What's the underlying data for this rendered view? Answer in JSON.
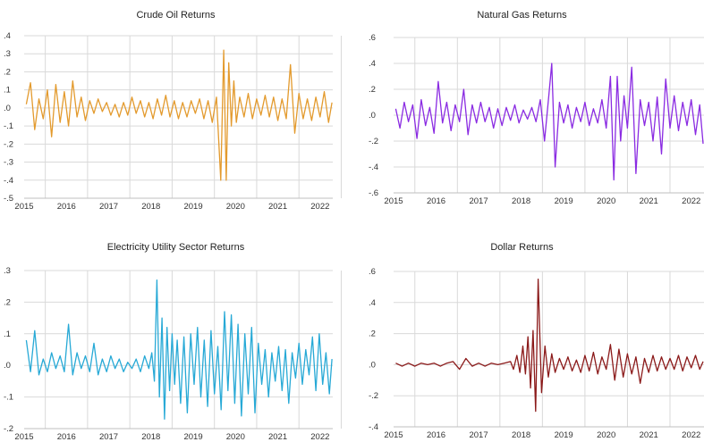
{
  "chart_data": [
    {
      "type": "line",
      "title": "Crude Oil Returns",
      "color": "#e39a2d",
      "x_ticks": [
        "2015",
        "2016",
        "2017",
        "2018",
        "2019",
        "2020",
        "2021",
        "2022"
      ],
      "y_ticks": [
        ".4",
        ".3",
        ".2",
        ".1",
        ".0",
        "-.1",
        "-.2",
        "-.3",
        "-.4",
        "-.5"
      ],
      "ylim": [
        -0.5,
        0.4
      ],
      "xlim": [
        2015.0,
        2022.3
      ],
      "grid": true,
      "series": [
        {
          "x": [
            2015.05,
            2015.15,
            2015.25,
            2015.35,
            2015.45,
            2015.55,
            2015.65,
            2015.75,
            2015.85,
            2015.95,
            2016.05,
            2016.15,
            2016.25,
            2016.35,
            2016.45,
            2016.55,
            2016.65,
            2016.75,
            2016.85,
            2016.95,
            2017.05,
            2017.15,
            2017.25,
            2017.35,
            2017.45,
            2017.55,
            2017.65,
            2017.75,
            2017.85,
            2017.95,
            2018.05,
            2018.15,
            2018.25,
            2018.35,
            2018.45,
            2018.55,
            2018.65,
            2018.75,
            2018.85,
            2018.95,
            2019.05,
            2019.15,
            2019.25,
            2019.35,
            2019.45,
            2019.55,
            2019.65,
            2019.72,
            2019.78,
            2019.84,
            2019.9,
            2019.96,
            2020.02,
            2020.1,
            2020.2,
            2020.3,
            2020.4,
            2020.5,
            2020.6,
            2020.7,
            2020.8,
            2020.9,
            2021.0,
            2021.1,
            2021.2,
            2021.3,
            2021.4,
            2021.5,
            2021.6,
            2021.7,
            2021.8,
            2021.9,
            2022.0,
            2022.1,
            2022.2,
            2022.28
          ],
          "values": [
            0.02,
            0.14,
            -0.12,
            0.05,
            -0.06,
            0.1,
            -0.16,
            0.13,
            -0.08,
            0.09,
            -0.1,
            0.15,
            -0.05,
            0.06,
            -0.07,
            0.04,
            -0.03,
            0.05,
            -0.02,
            0.03,
            -0.04,
            0.02,
            -0.05,
            0.03,
            -0.04,
            0.06,
            -0.03,
            0.04,
            -0.05,
            0.03,
            -0.06,
            0.05,
            -0.04,
            0.07,
            -0.05,
            0.04,
            -0.06,
            0.03,
            -0.05,
            0.04,
            -0.03,
            0.05,
            -0.06,
            0.04,
            -0.08,
            0.06,
            -0.4,
            0.32,
            -0.4,
            0.25,
            -0.1,
            0.15,
            -0.08,
            0.06,
            -0.05,
            0.08,
            -0.06,
            0.05,
            -0.04,
            0.07,
            -0.05,
            0.06,
            -0.07,
            0.05,
            -0.06,
            0.24,
            -0.14,
            0.08,
            -0.06,
            0.05,
            -0.07,
            0.06,
            -0.05,
            0.09,
            -0.08,
            0.03
          ]
        }
      ]
    },
    {
      "type": "line",
      "title": "Natural Gas Returns",
      "color": "#8a2be2",
      "x_ticks": [
        "2015",
        "2016",
        "2017",
        "2018",
        "2019",
        "2020",
        "2021",
        "2022"
      ],
      "y_ticks": [
        ".6",
        ".4",
        ".2",
        ".0",
        "-.2",
        "-.4",
        "-.6"
      ],
      "ylim": [
        -0.6,
        0.6
      ],
      "xlim": [
        2015.0,
        2022.3
      ],
      "grid": true,
      "series": [
        {
          "x": [
            2015.05,
            2015.15,
            2015.25,
            2015.35,
            2015.45,
            2015.55,
            2015.65,
            2015.75,
            2015.85,
            2015.95,
            2016.05,
            2016.15,
            2016.25,
            2016.35,
            2016.45,
            2016.55,
            2016.65,
            2016.75,
            2016.85,
            2016.95,
            2017.05,
            2017.15,
            2017.25,
            2017.35,
            2017.45,
            2017.55,
            2017.65,
            2017.75,
            2017.85,
            2017.95,
            2018.05,
            2018.15,
            2018.25,
            2018.35,
            2018.45,
            2018.55,
            2018.65,
            2018.72,
            2018.8,
            2018.9,
            2019.0,
            2019.1,
            2019.2,
            2019.3,
            2019.4,
            2019.5,
            2019.6,
            2019.7,
            2019.8,
            2019.9,
            2020.0,
            2020.1,
            2020.18,
            2020.26,
            2020.34,
            2020.42,
            2020.5,
            2020.6,
            2020.7,
            2020.8,
            2020.9,
            2021.0,
            2021.1,
            2021.2,
            2021.3,
            2021.4,
            2021.5,
            2021.6,
            2021.7,
            2021.8,
            2021.9,
            2022.0,
            2022.1,
            2022.2,
            2022.28
          ],
          "values": [
            0.05,
            -0.1,
            0.1,
            -0.05,
            0.08,
            -0.18,
            0.12,
            -0.08,
            0.06,
            -0.14,
            0.26,
            -0.06,
            0.1,
            -0.12,
            0.08,
            -0.05,
            0.2,
            -0.15,
            0.08,
            -0.06,
            0.1,
            -0.05,
            0.06,
            -0.1,
            0.05,
            -0.08,
            0.06,
            -0.04,
            0.08,
            -0.06,
            0.04,
            -0.03,
            0.06,
            -0.05,
            0.12,
            -0.2,
            0.15,
            0.4,
            -0.4,
            0.1,
            -0.06,
            0.08,
            -0.1,
            0.06,
            -0.05,
            0.1,
            -0.08,
            0.05,
            -0.06,
            0.12,
            -0.1,
            0.3,
            -0.5,
            0.3,
            -0.2,
            0.15,
            -0.1,
            0.37,
            -0.45,
            0.12,
            -0.08,
            0.1,
            -0.2,
            0.14,
            -0.3,
            0.28,
            -0.1,
            0.15,
            -0.12,
            0.1,
            -0.08,
            0.12,
            -0.15,
            0.08,
            -0.22
          ]
        }
      ]
    },
    {
      "type": "line",
      "title": "Electricity Utility Sector Returns",
      "color": "#27a9d6",
      "x_ticks": [
        "2015",
        "2016",
        "2017",
        "2018",
        "2019",
        "2020",
        "2021",
        "2022"
      ],
      "y_ticks": [
        ".3",
        ".2",
        ".1",
        ".0",
        "-.1",
        "-.2"
      ],
      "ylim": [
        -0.2,
        0.3
      ],
      "xlim": [
        2015.0,
        2022.3
      ],
      "grid": true,
      "series": [
        {
          "x": [
            2015.05,
            2015.15,
            2015.25,
            2015.35,
            2015.45,
            2015.55,
            2015.65,
            2015.75,
            2015.85,
            2015.95,
            2016.05,
            2016.15,
            2016.25,
            2016.35,
            2016.45,
            2016.55,
            2016.65,
            2016.75,
            2016.85,
            2016.95,
            2017.05,
            2017.15,
            2017.25,
            2017.35,
            2017.45,
            2017.55,
            2017.65,
            2017.75,
            2017.85,
            2017.95,
            2018.02,
            2018.08,
            2018.14,
            2018.2,
            2018.26,
            2018.32,
            2018.38,
            2018.44,
            2018.5,
            2018.56,
            2018.62,
            2018.7,
            2018.78,
            2018.86,
            2018.94,
            2019.02,
            2019.1,
            2019.18,
            2019.26,
            2019.34,
            2019.42,
            2019.5,
            2019.58,
            2019.66,
            2019.74,
            2019.82,
            2019.9,
            2019.98,
            2020.06,
            2020.14,
            2020.22,
            2020.3,
            2020.38,
            2020.46,
            2020.54,
            2020.62,
            2020.7,
            2020.78,
            2020.86,
            2020.94,
            2021.02,
            2021.1,
            2021.18,
            2021.26,
            2021.34,
            2021.42,
            2021.5,
            2021.58,
            2021.66,
            2021.74,
            2021.82,
            2021.9,
            2021.98,
            2022.06,
            2022.14,
            2022.22,
            2022.28
          ],
          "values": [
            0.08,
            -0.02,
            0.11,
            -0.03,
            0.02,
            -0.02,
            0.04,
            -0.01,
            0.03,
            -0.02,
            0.13,
            -0.03,
            0.04,
            -0.01,
            0.03,
            -0.02,
            0.07,
            -0.03,
            0.02,
            -0.02,
            0.03,
            -0.01,
            0.02,
            -0.02,
            0.01,
            -0.01,
            0.02,
            -0.02,
            0.03,
            -0.01,
            0.04,
            -0.05,
            0.27,
            -0.1,
            0.15,
            -0.17,
            0.12,
            -0.08,
            0.1,
            -0.06,
            0.08,
            -0.12,
            0.09,
            -0.15,
            0.1,
            -0.06,
            0.12,
            -0.1,
            0.08,
            -0.13,
            0.11,
            -0.09,
            0.06,
            -0.14,
            0.17,
            -0.08,
            0.16,
            -0.12,
            0.13,
            -0.16,
            0.1,
            -0.09,
            0.12,
            -0.15,
            0.07,
            -0.06,
            0.05,
            -0.1,
            0.04,
            -0.05,
            0.06,
            -0.08,
            0.05,
            -0.12,
            0.04,
            -0.04,
            0.07,
            -0.06,
            0.05,
            -0.03,
            0.09,
            -0.08,
            0.1,
            -0.06,
            0.04,
            -0.09,
            0.02
          ]
        }
      ]
    },
    {
      "type": "line",
      "title": "Dollar Returns",
      "color": "#8b1a1a",
      "x_ticks": [
        "2015",
        "2016",
        "2017",
        "2018",
        "2019",
        "2020",
        "2021",
        "2022"
      ],
      "y_ticks": [
        ".6",
        ".4",
        ".2",
        ".0",
        "-.2",
        "-.4"
      ],
      "ylim": [
        -0.4,
        0.6
      ],
      "xlim": [
        2015.0,
        2022.3
      ],
      "grid": true,
      "series": [
        {
          "x": [
            2015.05,
            2015.2,
            2015.35,
            2015.5,
            2015.65,
            2015.8,
            2015.95,
            2016.1,
            2016.25,
            2016.4,
            2016.55,
            2016.7,
            2016.85,
            2017.0,
            2017.15,
            2017.3,
            2017.45,
            2017.6,
            2017.75,
            2017.82,
            2017.9,
            2017.97,
            2018.04,
            2018.1,
            2018.16,
            2018.22,
            2018.28,
            2018.34,
            2018.4,
            2018.48,
            2018.56,
            2018.64,
            2018.72,
            2018.8,
            2018.9,
            2019.0,
            2019.1,
            2019.2,
            2019.3,
            2019.4,
            2019.5,
            2019.6,
            2019.7,
            2019.8,
            2019.9,
            2020.0,
            2020.1,
            2020.2,
            2020.3,
            2020.4,
            2020.5,
            2020.6,
            2020.7,
            2020.8,
            2020.9,
            2021.0,
            2021.1,
            2021.2,
            2021.3,
            2021.4,
            2021.5,
            2021.6,
            2021.7,
            2021.8,
            2021.9,
            2022.0,
            2022.1,
            2022.2,
            2022.28
          ],
          "values": [
            0.01,
            -0.01,
            0.01,
            -0.01,
            0.01,
            0.0,
            0.01,
            -0.01,
            0.01,
            0.02,
            -0.03,
            0.04,
            -0.01,
            0.01,
            -0.01,
            0.01,
            0.0,
            0.01,
            0.02,
            -0.03,
            0.06,
            -0.05,
            0.12,
            -0.06,
            0.18,
            -0.15,
            0.22,
            -0.3,
            0.55,
            -0.18,
            0.12,
            -0.08,
            0.07,
            -0.05,
            0.04,
            -0.03,
            0.05,
            -0.04,
            0.03,
            -0.05,
            0.06,
            -0.04,
            0.08,
            -0.06,
            0.05,
            -0.03,
            0.13,
            -0.1,
            0.1,
            -0.08,
            0.07,
            -0.06,
            0.05,
            -0.12,
            0.04,
            -0.05,
            0.06,
            -0.04,
            0.05,
            -0.03,
            0.04,
            -0.03,
            0.06,
            -0.04,
            0.05,
            -0.02,
            0.06,
            -0.03,
            0.02
          ]
        }
      ]
    }
  ]
}
